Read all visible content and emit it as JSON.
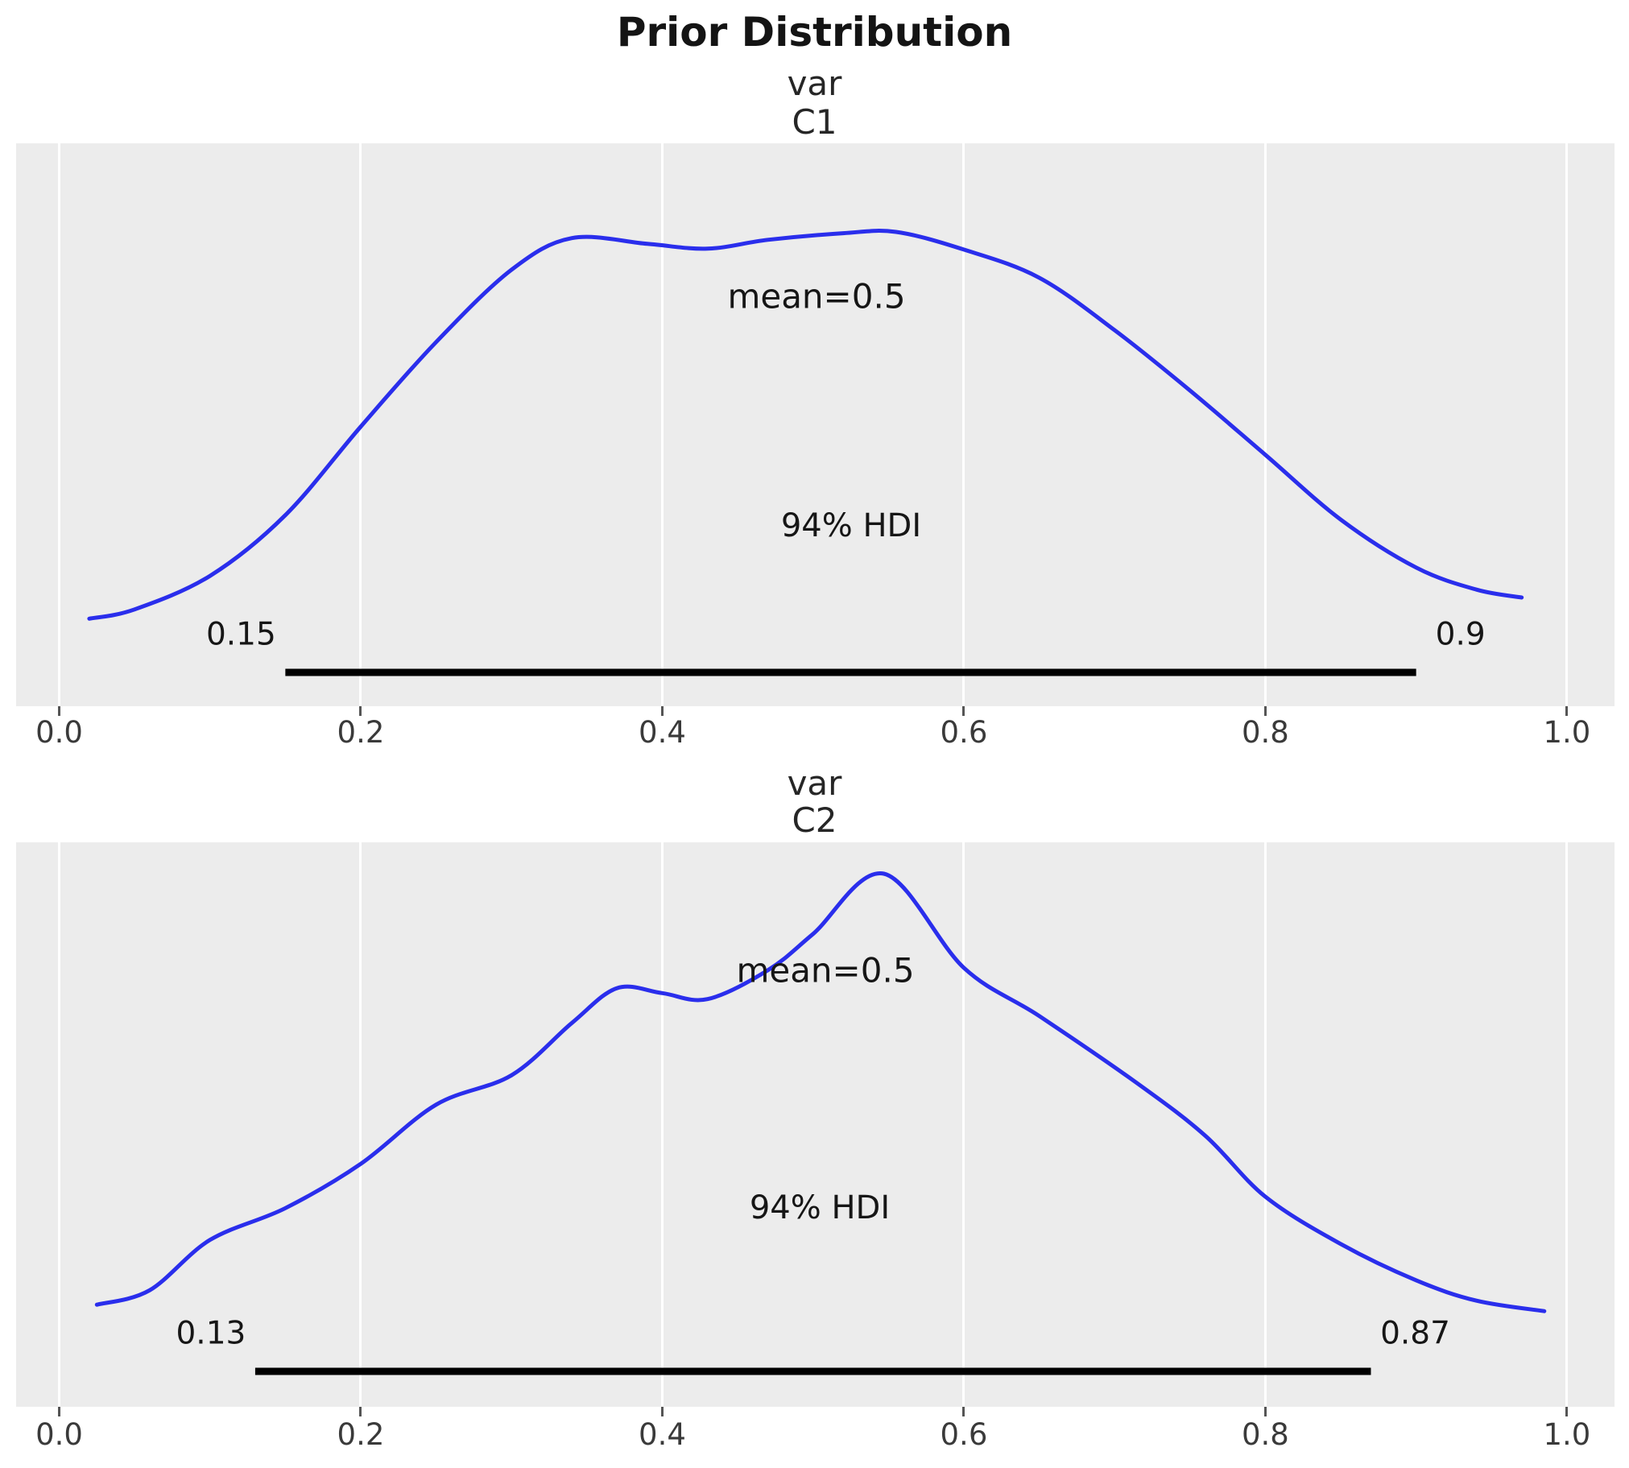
{
  "title": "Prior Distribution",
  "accent_color": "#2a2eec",
  "hdi_line_color": "#000000",
  "panel_bg_color": "#ececec",
  "gridline_color": "#ffffff",
  "panels": [
    {
      "title_line1": "var",
      "title_line2": "C1",
      "mean_label": "mean=0.5",
      "hdi_label": "94% HDI",
      "hdi_lower_label": "0.15",
      "hdi_upper_label": "0.9"
    },
    {
      "title_line1": "var",
      "title_line2": "C2",
      "mean_label": "mean=0.5",
      "hdi_label": "94% HDI",
      "hdi_lower_label": "0.13",
      "hdi_upper_label": "0.87"
    }
  ],
  "chart_data": [
    {
      "type": "line",
      "subtype": "kde-density",
      "variable": "C1",
      "title": "var C1",
      "mean": 0.5,
      "hdi_prob": 0.94,
      "hdi_interval": [
        0.15,
        0.9
      ],
      "x_range": [
        0,
        1
      ],
      "x_ticks": [
        0.0,
        0.2,
        0.4,
        0.6,
        0.8,
        1.0
      ],
      "x_tick_labels": [
        "0.0",
        "0.2",
        "0.4",
        "0.6",
        "0.8",
        "1.0"
      ],
      "grid": "vertical-white-on-gray",
      "legend": "none",
      "curve": {
        "x": [
          0.02,
          0.05,
          0.1,
          0.15,
          0.2,
          0.25,
          0.3,
          0.34,
          0.39,
          0.43,
          0.47,
          0.52,
          0.555,
          0.6,
          0.65,
          0.7,
          0.75,
          0.8,
          0.85,
          0.9,
          0.94,
          0.97
        ],
        "density": [
          0.122,
          0.143,
          0.219,
          0.357,
          0.558,
          0.75,
          0.914,
          0.986,
          0.973,
          0.962,
          0.982,
          0.997,
          1.0,
          0.96,
          0.896,
          0.777,
          0.64,
          0.494,
          0.347,
          0.238,
          0.188,
          0.17
        ]
      }
    },
    {
      "type": "line",
      "subtype": "kde-density",
      "variable": "C2",
      "title": "var C2",
      "mean": 0.5,
      "hdi_prob": 0.94,
      "hdi_interval": [
        0.13,
        0.87
      ],
      "x_range": [
        0,
        1
      ],
      "x_ticks": [
        0.0,
        0.2,
        0.4,
        0.6,
        0.8,
        1.0
      ],
      "x_tick_labels": [
        "0.0",
        "0.2",
        "0.4",
        "0.6",
        "0.8",
        "1.0"
      ],
      "grid": "vertical-white-on-gray",
      "legend": "none",
      "curve": {
        "x": [
          0.025,
          0.06,
          0.1,
          0.15,
          0.2,
          0.25,
          0.3,
          0.34,
          0.37,
          0.4,
          0.43,
          0.47,
          0.5,
          0.547,
          0.6,
          0.65,
          0.714,
          0.76,
          0.8,
          0.85,
          0.9,
          0.94,
          0.985
        ],
        "density": [
          0.134,
          0.163,
          0.264,
          0.328,
          0.417,
          0.536,
          0.595,
          0.7,
          0.77,
          0.76,
          0.748,
          0.806,
          0.879,
          1.0,
          0.811,
          0.714,
          0.581,
          0.474,
          0.351,
          0.256,
          0.183,
          0.142,
          0.121
        ]
      }
    }
  ]
}
